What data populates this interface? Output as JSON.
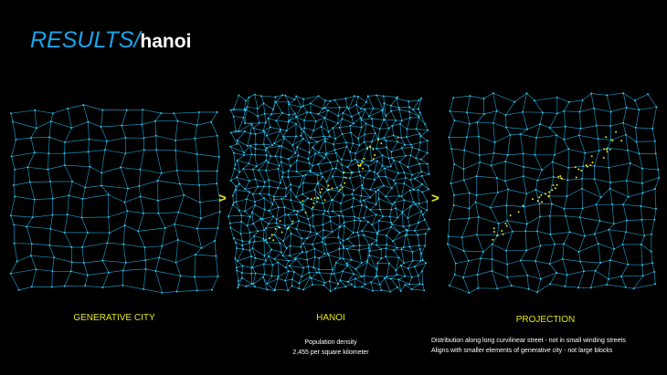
{
  "header": {
    "title_prefix": "RESULTS/",
    "title_suffix": "hanoi"
  },
  "panels": [
    {
      "label": "GENERATIVE CITY"
    },
    {
      "label": "HANOI",
      "notes": [
        "Population density",
        "2,455 per square kilometer"
      ]
    },
    {
      "label": "PROJECTION",
      "notes": [
        "Distribution along long curvilinear street - not in small winding streets",
        "Aligns with smaller elements of generative city - not large blocks"
      ]
    }
  ],
  "arrows": [
    ">",
    ">"
  ]
}
